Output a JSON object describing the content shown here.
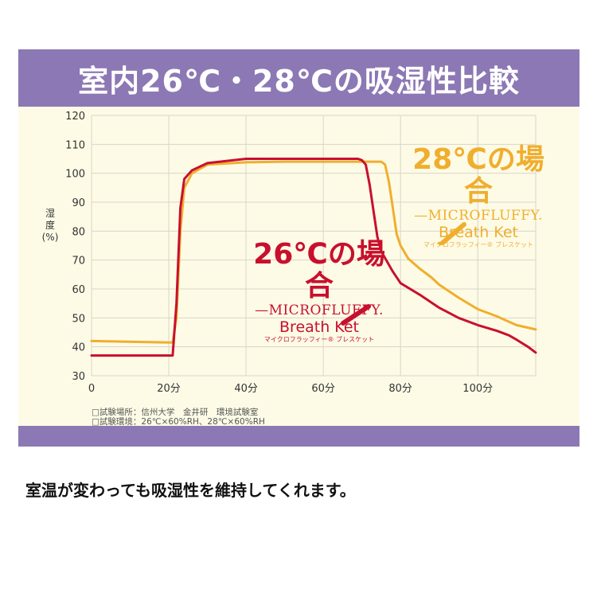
{
  "header": {
    "title": "室内26℃・28℃の吸湿性比較"
  },
  "notes": {
    "location": "□試験場所：信州大学　金井研　環境試験室",
    "environment": "□試験環境：26℃×60%RH、28℃×60%RH"
  },
  "caption": "室温が変わっても吸湿性を維持してくれます。",
  "legend": {
    "l28": {
      "lead": "28℃の場合",
      "brand": "—MICROFLUFFY.",
      "product": "Breath Ket",
      "kana": "マイクロフラッフィー® ブレスケット"
    },
    "l26": {
      "lead": "26℃の場合",
      "brand": "—MICROFLUFFY.",
      "product": "Breath Ket",
      "kana": "マイクロフラッフィー® ブレスケット"
    }
  },
  "colors": {
    "purple": "#8c78b4",
    "cream": "#fdfbe6",
    "red": "#c8102e",
    "orange": "#f0ae2e",
    "grid": "#d9d6c8"
  },
  "chart_data": {
    "type": "line",
    "ylabel": [
      "湿",
      "度",
      "(%)"
    ],
    "xlim": [
      0,
      115
    ],
    "ylim": [
      30,
      120
    ],
    "x_ticks": [
      "0",
      "20分",
      "40分",
      "60分",
      "80分",
      "100分"
    ],
    "x_tick_values": [
      0,
      20,
      40,
      60,
      80,
      100
    ],
    "y_ticks": [
      30,
      40,
      50,
      60,
      70,
      80,
      90,
      100,
      110,
      120
    ],
    "x_gridlines": [
      0,
      20,
      40,
      60,
      80,
      100,
      115
    ],
    "grid": true,
    "series": [
      {
        "name": "28℃の場合",
        "color": "#f0ae2e",
        "x": [
          0,
          20,
          21,
          22,
          23,
          24,
          26,
          30,
          40,
          50,
          60,
          70,
          72,
          75,
          76,
          77,
          78,
          79,
          80,
          82,
          85,
          88,
          90,
          95,
          100,
          105,
          110,
          115
        ],
        "y": [
          42,
          41.5,
          41.5,
          50,
          80,
          95,
          100,
          103,
          103.8,
          104,
          104,
          104,
          104,
          104,
          103,
          97,
          88,
          79,
          75,
          70.5,
          67,
          64,
          61.5,
          57,
          53,
          50.5,
          47.5,
          46
        ]
      },
      {
        "name": "26℃の場合",
        "color": "#c8102e",
        "x": [
          0,
          20,
          21,
          22,
          23,
          24,
          26,
          30,
          40,
          50,
          60,
          69,
          70,
          71,
          72,
          73,
          74,
          75,
          78,
          80,
          85,
          90,
          95,
          100,
          105,
          108,
          110,
          113,
          115
        ],
        "y": [
          37,
          37,
          37,
          55,
          88,
          98,
          101,
          103.5,
          105,
          105,
          105,
          105,
          104.5,
          103,
          96,
          87,
          78,
          73,
          66,
          62,
          58,
          53.5,
          50,
          47.5,
          45.5,
          44,
          42.5,
          40,
          38
        ]
      }
    ]
  }
}
